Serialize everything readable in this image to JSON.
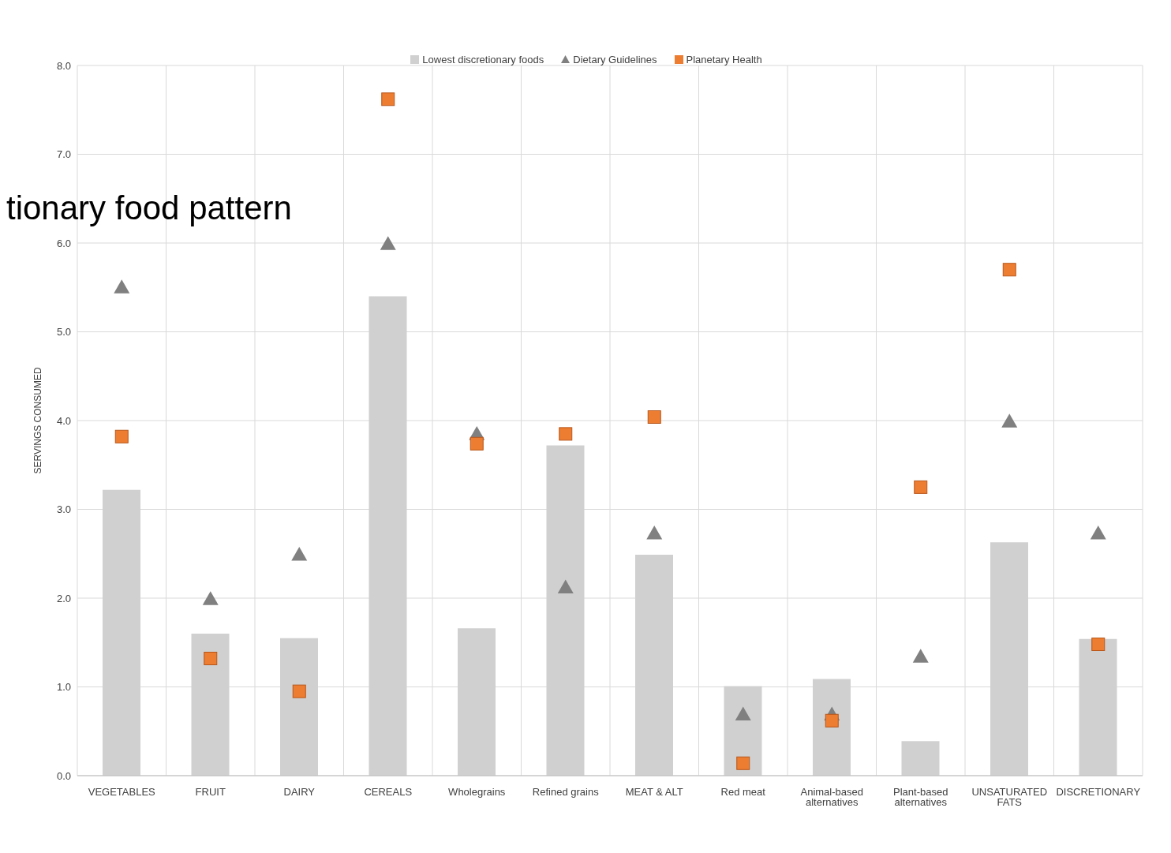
{
  "chart_data": {
    "type": "bar",
    "title": "tionary food pattern",
    "ylabel": "SERVINGS CONSUMED",
    "categories": [
      "VEGETABLES",
      "FRUIT",
      "DAIRY",
      "CEREALS",
      "Wholegrains",
      "Refined grains",
      "MEAT & ALT",
      "Red meat",
      "Animal-based alternatives",
      "Plant-based alternatives",
      "UNSATURATED FATS",
      "DISCRETIONARY"
    ],
    "series": [
      {
        "name": "Lowest discretionary foods",
        "color": "#d0d0d0",
        "values": [
          3.22,
          1.6,
          1.55,
          5.4,
          1.66,
          3.72,
          2.49,
          1.01,
          1.09,
          0.39,
          2.63,
          1.54
        ]
      },
      {
        "name": "Dietary Guidelines",
        "type": "scatter",
        "marker": "triangle",
        "color": "#808080",
        "values": [
          5.5,
          1.99,
          2.49,
          5.99,
          3.85,
          2.12,
          2.73,
          0.69,
          0.69,
          1.34,
          3.99,
          2.73
        ]
      },
      {
        "name": "Planetary Health",
        "type": "scatter",
        "marker": "square",
        "color": "#ed7d31",
        "values": [
          3.82,
          1.32,
          0.95,
          7.62,
          3.74,
          3.85,
          4.04,
          0.14,
          0.62,
          3.25,
          5.7,
          1.48
        ]
      }
    ],
    "ylim": [
      0,
      8
    ],
    "yticks": [
      {
        "value": 0,
        "label": "0.0"
      },
      {
        "value": 1,
        "label": "1.0"
      },
      {
        "value": 2,
        "label": "2.0"
      },
      {
        "value": 3,
        "label": "3.0"
      },
      {
        "value": 4,
        "label": "4.0"
      },
      {
        "value": 5,
        "label": "5.0"
      },
      {
        "value": 6,
        "label": "6.0"
      },
      {
        "value": 7,
        "label": "7.0"
      },
      {
        "value": 8,
        "label": "8.0"
      }
    ],
    "grid": true,
    "legend": "top"
  }
}
